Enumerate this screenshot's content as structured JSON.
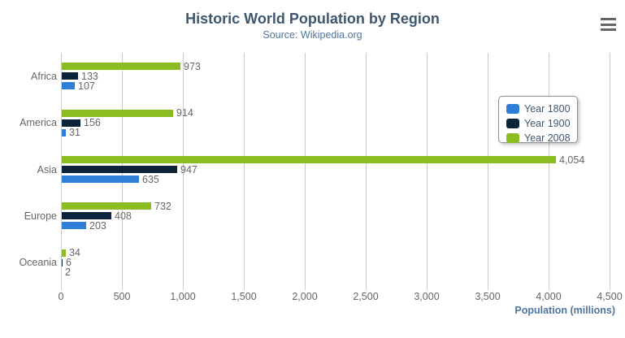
{
  "header": {
    "menu_icon": "hamburger-icon"
  },
  "chart_data": {
    "type": "bar",
    "orientation": "horizontal",
    "title": "Historic World Population by Region",
    "subtitle": "Source: Wikipedia.org",
    "categories": [
      "Africa",
      "America",
      "Asia",
      "Europe",
      "Oceania"
    ],
    "series": [
      {
        "name": "Year 1800",
        "color": "#2f7ed8",
        "values": [
          107,
          31,
          635,
          203,
          2
        ]
      },
      {
        "name": "Year 1900",
        "color": "#0d233a",
        "values": [
          133,
          156,
          947,
          408,
          6
        ]
      },
      {
        "name": "Year 2008",
        "color": "#8bbc21",
        "values": [
          973,
          914,
          4054,
          732,
          34
        ]
      }
    ],
    "bar_order_top_to_bottom": [
      "Year 2008",
      "Year 1900",
      "Year 1800"
    ],
    "data_labels": true,
    "xlabel": "Population (millions)",
    "x_ticks": [
      0,
      500,
      1000,
      1500,
      2000,
      2500,
      3000,
      3500,
      4000,
      4500
    ],
    "xlim": [
      0,
      4500
    ],
    "grid": true,
    "legend_position": "right-top"
  },
  "colors": {
    "grid_line": "#C9C9C9",
    "axis_line": "#C0D0E0",
    "title_text": "#3E576F",
    "subtitle_text": "#4d759e",
    "axis_label_text": "#666666",
    "data_label_text": "#666666",
    "axis_title_text": "#4d759e",
    "legend_border": "#909090",
    "legend_text": "#3E576F",
    "menu_icon": "#666666",
    "background": "#ffffff"
  }
}
